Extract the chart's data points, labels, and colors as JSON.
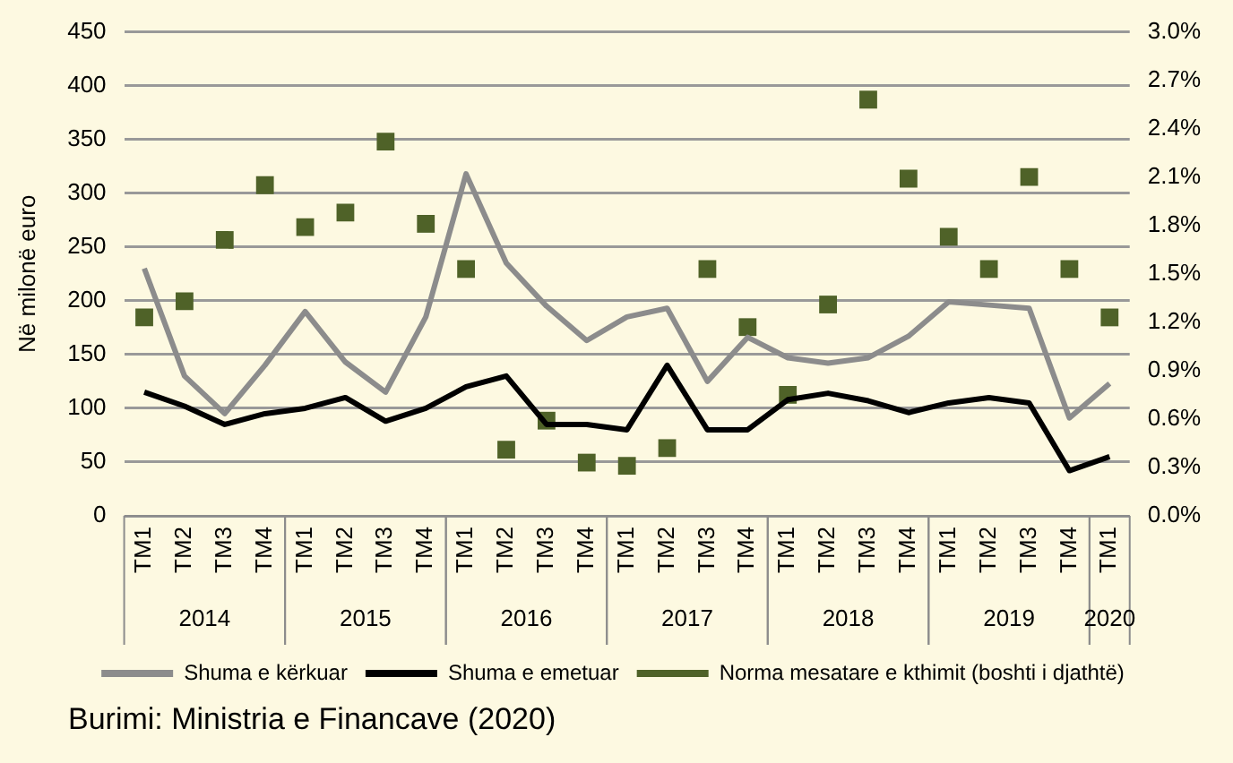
{
  "chart_data": {
    "type": "line",
    "ylabel": "Në milonë euro",
    "categories": [
      "TM1",
      "TM2",
      "TM3",
      "TM4",
      "TM1",
      "TM2",
      "TM3",
      "TM4",
      "TM1",
      "TM2",
      "TM3",
      "TM4",
      "TM1",
      "TM2",
      "TM3",
      "TM4",
      "TM1",
      "TM2",
      "TM3",
      "TM4",
      "TM1",
      "TM2",
      "TM3",
      "TM4",
      "TM1"
    ],
    "series": [
      {
        "name": "Shuma e kërkuar",
        "color": "#8c8c8c",
        "marker": "none",
        "values": [
          230,
          130,
          95,
          140,
          190,
          143,
          115,
          185,
          318,
          235,
          195,
          163,
          185,
          193,
          125,
          166,
          147,
          142,
          147,
          167,
          199,
          196,
          193,
          91,
          123
        ]
      },
      {
        "name": "Shuma e emetuar",
        "color": "#000000",
        "marker": "none",
        "values": [
          115,
          102,
          85,
          95,
          100,
          110,
          88,
          100,
          120,
          130,
          85,
          85,
          80,
          140,
          80,
          80,
          108,
          114,
          107,
          96,
          105,
          110,
          105,
          42,
          55
        ]
      },
      {
        "name": "Norma mesatare e kthimit (boshti i djathtë)",
        "color": "#4f6228",
        "type": "scatter",
        "marker": "square",
        "axis": "y2",
        "values": [
          1.23,
          1.33,
          1.71,
          2.05,
          1.79,
          1.88,
          2.32,
          1.81,
          1.53,
          0.41,
          0.59,
          0.33,
          0.31,
          0.42,
          1.53,
          1.17,
          0.75,
          1.31,
          2.58,
          2.09,
          1.73,
          1.53,
          2.1,
          1.53,
          1.23
        ]
      }
    ],
    "ylim": [
      0,
      450
    ],
    "yticks": [
      0,
      50,
      100,
      150,
      200,
      250,
      300,
      350,
      400,
      450
    ],
    "y2lim": [
      0,
      3
    ],
    "y2ticks": [
      {
        "value": 0,
        "label": "0.0%"
      },
      {
        "value": 0.3,
        "label": "0.3%"
      },
      {
        "value": 0.6,
        "label": "0.6%"
      },
      {
        "value": 0.9,
        "label": "0.9%"
      },
      {
        "value": 1.2,
        "label": "1.2%"
      },
      {
        "value": 1.5,
        "label": "1.5%"
      },
      {
        "value": 1.8,
        "label": "1.8%"
      },
      {
        "value": 2.1,
        "label": "2.1%"
      },
      {
        "value": 2.4,
        "label": "2.4%"
      },
      {
        "value": 2.7,
        "label": "2.7%"
      },
      {
        "value": 3,
        "label": "3.0%"
      }
    ],
    "grid": "y",
    "legend": "bottom",
    "annotations": [
      "2014",
      "2015",
      "2016",
      "2017",
      "2018",
      "2019",
      "2020",
      "Burimi: Ministria e Financave (2020)"
    ]
  }
}
